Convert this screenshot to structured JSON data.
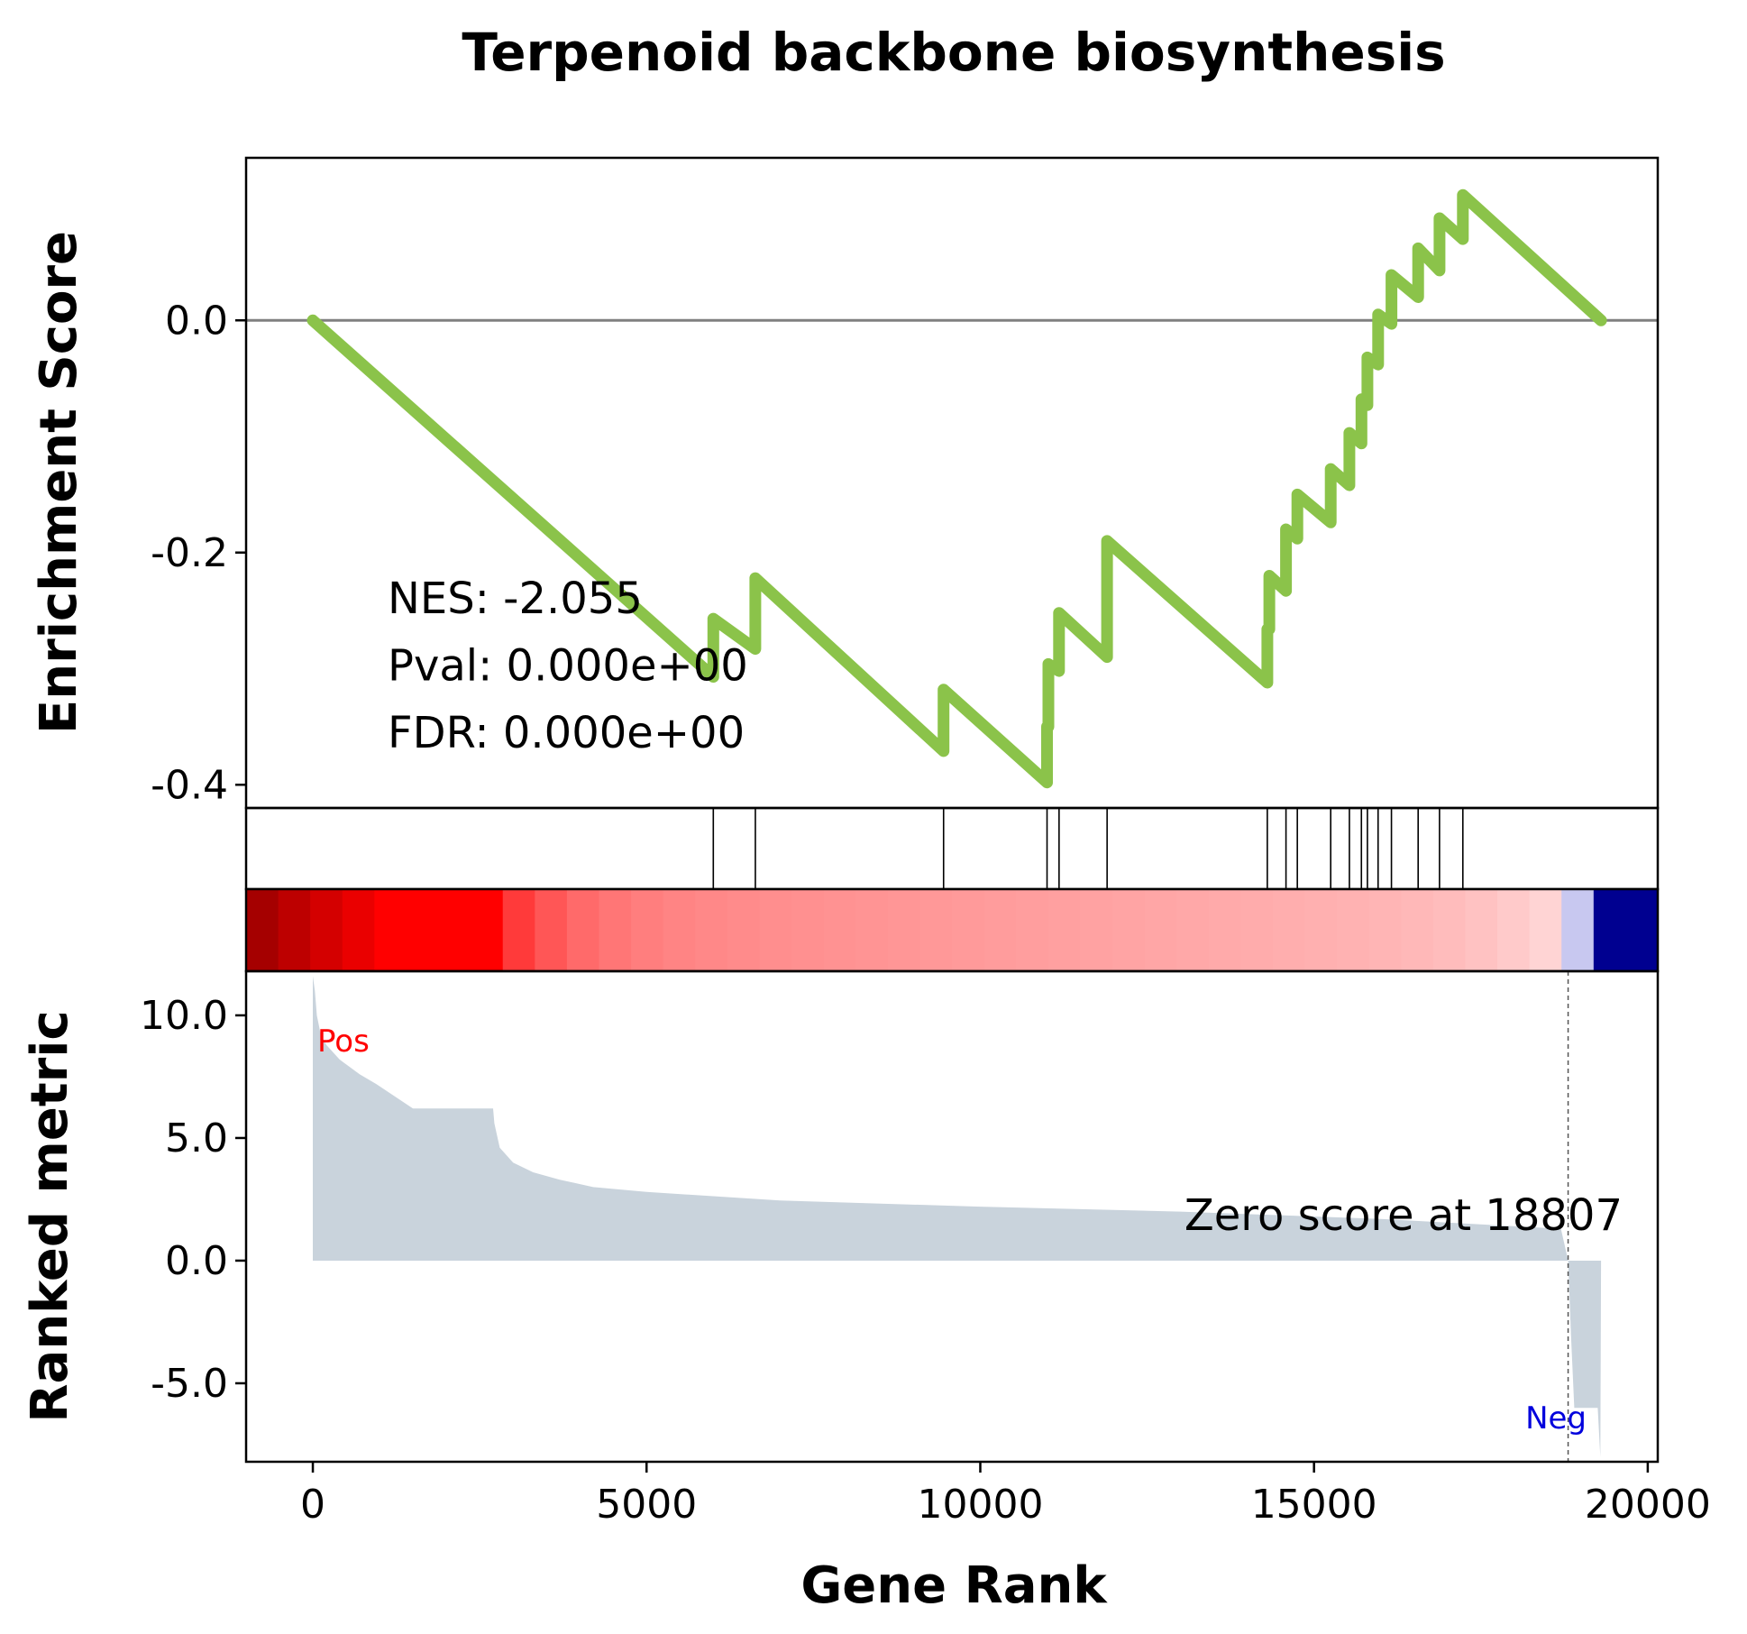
{
  "chart_data": {
    "type": "line",
    "title": "Terpenoid backbone biosynthesis",
    "xlabel": "Gene Rank",
    "xlim": [
      -1000,
      20150
    ],
    "x_ticks": [
      0,
      5000,
      10000,
      15000,
      20000
    ],
    "x_tick_labels": [
      "0",
      "5000",
      "10000",
      "15000",
      "20000"
    ],
    "enrichment": {
      "ylabel": "Enrichment Score",
      "ylim": [
        -0.42,
        0.14
      ],
      "y_ticks": [
        0.0,
        -0.2,
        -0.4
      ],
      "y_tick_labels": [
        "0.0",
        "-0.2",
        "-0.4"
      ],
      "line_color": "#8bc34a",
      "zero_line_color": "#808080",
      "points": [
        [
          0,
          0.0
        ],
        [
          6000,
          -0.307
        ],
        [
          6000,
          -0.257
        ],
        [
          6630,
          -0.283
        ],
        [
          6630,
          -0.222
        ],
        [
          9450,
          -0.371
        ],
        [
          9450,
          -0.318
        ],
        [
          11000,
          -0.398
        ],
        [
          11000,
          -0.35
        ],
        [
          11020,
          -0.35
        ],
        [
          11020,
          -0.296
        ],
        [
          11180,
          -0.302
        ],
        [
          11180,
          -0.252
        ],
        [
          11900,
          -0.29
        ],
        [
          11900,
          -0.19
        ],
        [
          14300,
          -0.312
        ],
        [
          14300,
          -0.266
        ],
        [
          14330,
          -0.266
        ],
        [
          14330,
          -0.22
        ],
        [
          14580,
          -0.233
        ],
        [
          14580,
          -0.18
        ],
        [
          14750,
          -0.188
        ],
        [
          14750,
          -0.15
        ],
        [
          15250,
          -0.174
        ],
        [
          15250,
          -0.128
        ],
        [
          15530,
          -0.142
        ],
        [
          15530,
          -0.097
        ],
        [
          15710,
          -0.106
        ],
        [
          15710,
          -0.068
        ],
        [
          15800,
          -0.073
        ],
        [
          15800,
          -0.032
        ],
        [
          15960,
          -0.038
        ],
        [
          15960,
          0.005
        ],
        [
          16160,
          -0.003
        ],
        [
          16160,
          0.039
        ],
        [
          16560,
          0.02
        ],
        [
          16560,
          0.062
        ],
        [
          16880,
          0.043
        ],
        [
          16880,
          0.088
        ],
        [
          17230,
          0.07
        ],
        [
          17230,
          0.108
        ],
        [
          19300,
          0.0
        ]
      ],
      "annotation": [
        "NES: -2.055",
        "Pval: 0.000e+00",
        "FDR: 0.000e+00"
      ]
    },
    "hits": [
      6000,
      6630,
      9450,
      11000,
      11180,
      11900,
      14300,
      14580,
      14750,
      15250,
      15530,
      15710,
      15800,
      15960,
      16160,
      16560,
      16880,
      17230
    ],
    "heatmap_colors": [
      "#a50000",
      "#bd0000",
      "#d40000",
      "#ea0000",
      "#ff0000",
      "#ff0000",
      "#ff0000",
      "#ff0000",
      "#ff3a3a",
      "#ff5656",
      "#ff6a6a",
      "#ff7676",
      "#ff7e7e",
      "#ff8484",
      "#ff8888",
      "#ff8b8b",
      "#ff8e8e",
      "#ff9090",
      "#ff9292",
      "#ff9494",
      "#ff9696",
      "#ff9898",
      "#ff9a9a",
      "#ff9c9c",
      "#ff9e9e",
      "#ffa0a0",
      "#ffa2a2",
      "#ffa4a4",
      "#ffa6a6",
      "#ffa8a8",
      "#ffaaaa",
      "#ffacac",
      "#ffaeae",
      "#ffb0b0",
      "#ffb2b2",
      "#ffb5b5",
      "#ffb8b8",
      "#ffbcbc",
      "#ffc2c2",
      "#ffcaca",
      "#ffd4d4",
      "#c8c8f0",
      "#000090",
      "#000090"
    ],
    "ranked_metric": {
      "ylabel": "Ranked metric",
      "ylim": [
        -8.2,
        11.8
      ],
      "y_ticks": [
        10.0,
        5.0,
        0.0,
        -5.0
      ],
      "y_tick_labels": [
        "10.0",
        "5.0",
        "0.0",
        "-5.0"
      ],
      "fill_color": "#c9d3dc",
      "profile": [
        [
          0,
          11.6
        ],
        [
          30,
          11.0
        ],
        [
          60,
          10.0
        ],
        [
          120,
          9.2
        ],
        [
          200,
          8.8
        ],
        [
          300,
          8.5
        ],
        [
          400,
          8.2
        ],
        [
          500,
          8.0
        ],
        [
          700,
          7.6
        ],
        [
          950,
          7.2
        ],
        [
          1500,
          6.2
        ],
        [
          2700,
          6.2
        ],
        [
          2720,
          5.6
        ],
        [
          2800,
          4.6
        ],
        [
          3000,
          4.0
        ],
        [
          3300,
          3.6
        ],
        [
          3700,
          3.3
        ],
        [
          4200,
          3.0
        ],
        [
          5000,
          2.8
        ],
        [
          7000,
          2.45
        ],
        [
          10000,
          2.2
        ],
        [
          13000,
          2.0
        ],
        [
          16000,
          1.7
        ],
        [
          18700,
          1.3
        ],
        [
          18807,
          0.0
        ],
        [
          18850,
          -3.0
        ],
        [
          18900,
          -6.0
        ],
        [
          19250,
          -6.0
        ],
        [
          19290,
          -8.0
        ],
        [
          19300,
          0.0
        ]
      ],
      "zero_cross": 18807,
      "zero_label": "Zero score at 18807",
      "pos_label": "Pos",
      "neg_label": "Neg",
      "pos_color": "#ff0000",
      "neg_color": "#0000dd"
    }
  }
}
